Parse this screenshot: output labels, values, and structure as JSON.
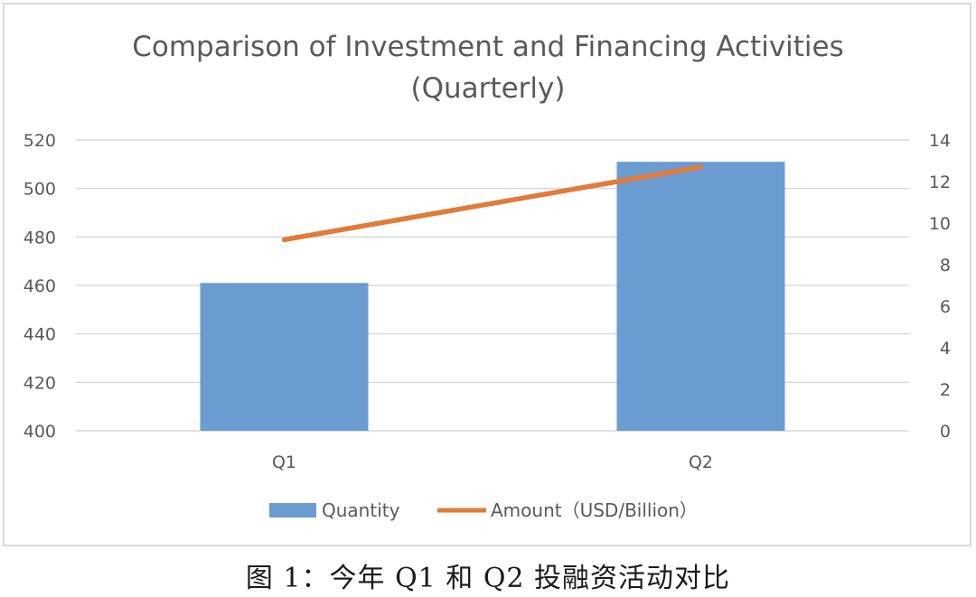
{
  "figure": {
    "caption": "图 1：今年 Q1 和 Q2 投融资活动对比"
  },
  "chart_data": {
    "type": "bar",
    "title_lines": [
      "Comparison of Investment and Financing Activities",
      "(Quarterly)"
    ],
    "categories": [
      "Q1",
      "Q2"
    ],
    "series": [
      {
        "name": "Quantity",
        "type": "bar",
        "axis": "left",
        "values": [
          461,
          511
        ],
        "color": "#6a9bd1"
      },
      {
        "name": "Amount（USD/Billion）",
        "type": "line",
        "axis": "right",
        "values": [
          9.2,
          12.7
        ],
        "color": "#e07b39"
      }
    ],
    "left_axis": {
      "min": 400,
      "max": 520,
      "ticks": [
        "400",
        "420",
        "440",
        "460",
        "480",
        "500",
        "520"
      ]
    },
    "right_axis": {
      "min": 0,
      "max": 14,
      "ticks": [
        "0",
        "2",
        "4",
        "6",
        "8",
        "10",
        "12",
        "14"
      ]
    },
    "grid": true,
    "legend_position": "bottom"
  }
}
